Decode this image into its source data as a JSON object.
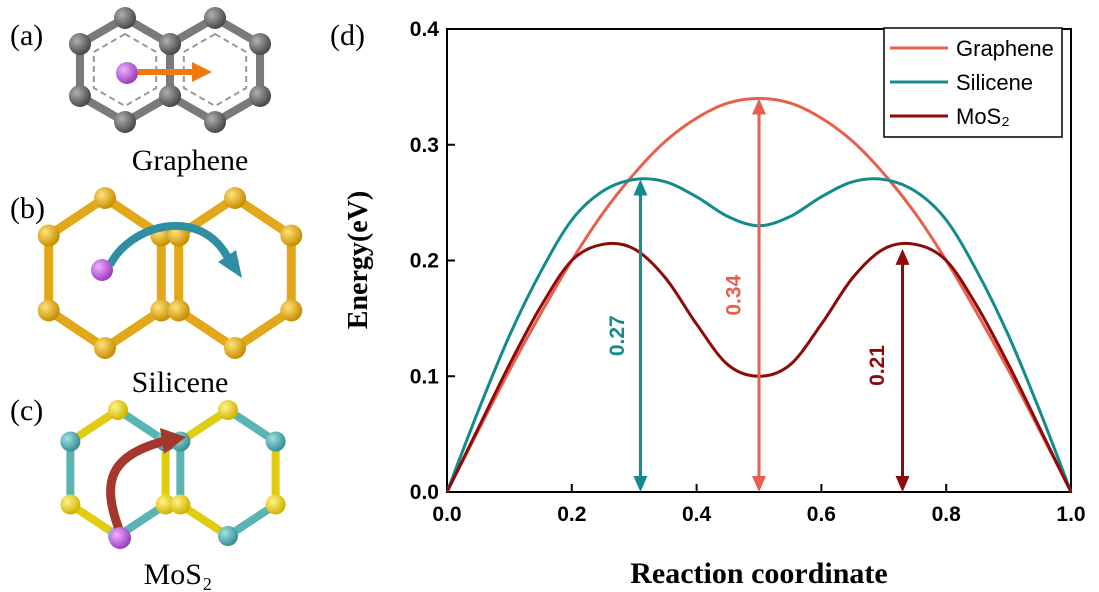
{
  "panels": [
    {
      "label": "(a)",
      "caption": "Graphene"
    },
    {
      "label": "(b)",
      "caption": "Silicene"
    },
    {
      "label": "(c)",
      "caption": "MoS₂"
    }
  ],
  "chart_data": {
    "type": "line",
    "panel_label": "(d)",
    "x_label": "Reaction coordinate",
    "y_label": "Energy(eV)",
    "x": [
      0,
      0.05,
      0.1,
      0.15,
      0.2,
      0.25,
      0.3,
      0.35,
      0.4,
      0.45,
      0.5,
      0.55,
      0.6,
      0.65,
      0.7,
      0.75,
      0.8,
      0.85,
      0.9,
      0.95,
      1.0
    ],
    "series": [
      {
        "name": "Graphene",
        "color": "#e8604c",
        "values": [
          0,
          0.053,
          0.105,
          0.154,
          0.2,
          0.241,
          0.275,
          0.303,
          0.323,
          0.336,
          0.34,
          0.336,
          0.323,
          0.303,
          0.275,
          0.241,
          0.2,
          0.154,
          0.105,
          0.053,
          0
        ]
      },
      {
        "name": "Silicene",
        "color": "#138b8b",
        "values": [
          0,
          0.07,
          0.135,
          0.19,
          0.235,
          0.26,
          0.27,
          0.268,
          0.255,
          0.238,
          0.23,
          0.238,
          0.255,
          0.268,
          0.27,
          0.26,
          0.235,
          0.19,
          0.135,
          0.07,
          0
        ]
      },
      {
        "name": "MoS₂",
        "color": "#8b0a0a",
        "values": [
          0,
          0.055,
          0.11,
          0.16,
          0.2,
          0.214,
          0.21,
          0.185,
          0.145,
          0.11,
          0.1,
          0.11,
          0.145,
          0.185,
          0.21,
          0.214,
          0.2,
          0.16,
          0.11,
          0.055,
          0
        ]
      }
    ],
    "annotations": [
      {
        "text": "0.27",
        "x": 0.31,
        "y": 0.27,
        "color": "#138b8b"
      },
      {
        "text": "0.34",
        "x": 0.5,
        "y": 0.34,
        "color": "#e8604c"
      },
      {
        "text": "0.21",
        "x": 0.73,
        "y": 0.21,
        "color": "#8b0a0a"
      }
    ],
    "xlim": [
      0,
      1.0
    ],
    "ylim": [
      0,
      0.4
    ],
    "xticks": [
      {
        "value": 0,
        "label": "0.0"
      },
      0.2,
      0.4,
      0.6,
      0.8,
      {
        "value": 1,
        "label": "1.0"
      }
    ],
    "yticks": [
      {
        "value": 0,
        "label": "0.0"
      },
      0.1,
      0.2,
      0.3,
      0.4
    ],
    "legend": "upper right"
  }
}
